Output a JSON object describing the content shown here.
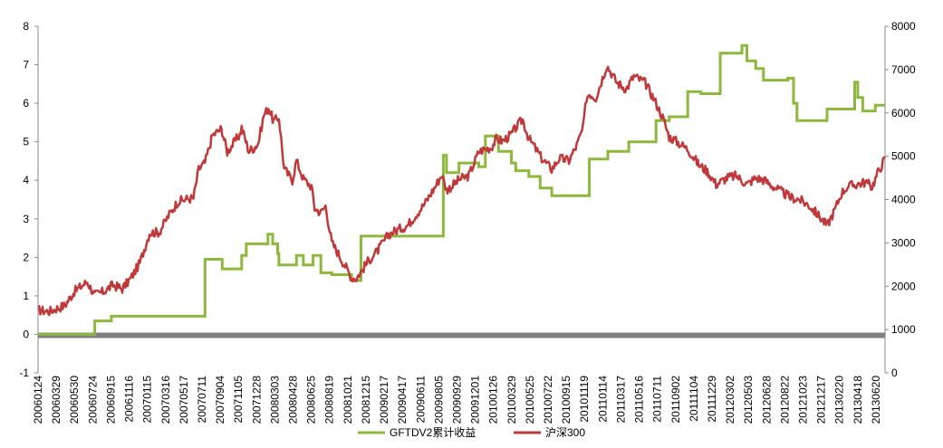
{
  "colors": {
    "green_series": "#8DB83E",
    "red_series": "#C0393A",
    "zero_band": "#7F7F7F",
    "axis": "#888888"
  },
  "chart_data": {
    "type": "line",
    "grid": false,
    "legend_position": "bottom",
    "left_axis": {
      "ylim": [
        -1,
        8
      ],
      "ticks": [
        "-1",
        "0",
        "1",
        "2",
        "3",
        "4",
        "5",
        "6",
        "7",
        "8"
      ]
    },
    "right_axis": {
      "ylim": [
        0,
        8000
      ],
      "ticks": [
        "0",
        "1000",
        "2000",
        "3000",
        "4000",
        "5000",
        "6000",
        "7000",
        "8000"
      ]
    },
    "x_start": "20060124",
    "x_end": "20130620",
    "x_tick_labels": [
      "20060124",
      "20060329",
      "20060530",
      "20060724",
      "20060915",
      "20061116",
      "20070115",
      "20070316",
      "20070517",
      "20070711",
      "20070904",
      "20071105",
      "20071228",
      "20080303",
      "20080428",
      "20080625",
      "20080819",
      "20081021",
      "20081215",
      "20090217",
      "20090417",
      "20090611",
      "20090805",
      "20090929",
      "20091201",
      "20100126",
      "20100329",
      "20100525",
      "20100722",
      "20100915",
      "20101119",
      "20110114",
      "20110317",
      "20110516",
      "20110711",
      "20110902",
      "20111104",
      "20111229",
      "20120302",
      "20120503",
      "20120628",
      "20120822",
      "20121023",
      "20121217",
      "20130220",
      "20130418",
      "20130620"
    ],
    "series": [
      {
        "name": "GFTDV2累计收益",
        "axis": "left",
        "step": true,
        "points": [
          [
            "20060124",
            0.0
          ],
          [
            "20060724",
            0.0
          ],
          [
            "20060724",
            0.35
          ],
          [
            "20060915",
            0.35
          ],
          [
            "20060915",
            0.47
          ],
          [
            "20070711",
            0.47
          ],
          [
            "20070711",
            1.95
          ],
          [
            "20070904",
            1.95
          ],
          [
            "20070904",
            1.7
          ],
          [
            "20071105",
            1.7
          ],
          [
            "20071105",
            2.05
          ],
          [
            "20071120",
            2.05
          ],
          [
            "20071120",
            2.35
          ],
          [
            "20080128",
            2.35
          ],
          [
            "20080128",
            2.6
          ],
          [
            "20080212",
            2.6
          ],
          [
            "20080212",
            2.35
          ],
          [
            "20080228",
            2.35
          ],
          [
            "20080228",
            2.1
          ],
          [
            "20080303",
            2.1
          ],
          [
            "20080303",
            1.8
          ],
          [
            "20080428",
            1.8
          ],
          [
            "20080428",
            2.05
          ],
          [
            "20080520",
            2.05
          ],
          [
            "20080520",
            1.8
          ],
          [
            "20080620",
            1.8
          ],
          [
            "20080620",
            2.05
          ],
          [
            "20080715",
            2.05
          ],
          [
            "20080715",
            1.6
          ],
          [
            "20080819",
            1.6
          ],
          [
            "20080819",
            1.55
          ],
          [
            "20081021",
            1.55
          ],
          [
            "20081021",
            1.4
          ],
          [
            "20081120",
            1.4
          ],
          [
            "20081120",
            2.55
          ],
          [
            "20090810",
            2.55
          ],
          [
            "20090810",
            4.65
          ],
          [
            "20090820",
            4.65
          ],
          [
            "20090820",
            4.2
          ],
          [
            "20090929",
            4.2
          ],
          [
            "20090929",
            4.45
          ],
          [
            "20091201",
            4.45
          ],
          [
            "20091201",
            4.35
          ],
          [
            "20091222",
            4.35
          ],
          [
            "20091222",
            5.15
          ],
          [
            "20100202",
            5.15
          ],
          [
            "20100202",
            4.75
          ],
          [
            "20100315",
            4.75
          ],
          [
            "20100315",
            4.45
          ],
          [
            "20100329",
            4.45
          ],
          [
            "20100329",
            4.25
          ],
          [
            "20100510",
            4.25
          ],
          [
            "20100510",
            4.1
          ],
          [
            "20100615",
            4.1
          ],
          [
            "20100615",
            3.8
          ],
          [
            "20100722",
            3.8
          ],
          [
            "20100722",
            3.6
          ],
          [
            "20101119",
            3.6
          ],
          [
            "20101119",
            4.55
          ],
          [
            "20110117",
            4.55
          ],
          [
            "20110117",
            4.75
          ],
          [
            "20110325",
            4.75
          ],
          [
            "20110325",
            5.0
          ],
          [
            "20110620",
            5.0
          ],
          [
            "20110620",
            5.55
          ],
          [
            "20110801",
            5.55
          ],
          [
            "20110801",
            5.65
          ],
          [
            "20110929",
            5.65
          ],
          [
            "20110929",
            6.3
          ],
          [
            "20111110",
            6.3
          ],
          [
            "20111110",
            6.25
          ],
          [
            "20120111",
            6.25
          ],
          [
            "20120111",
            7.3
          ],
          [
            "20120320",
            7.3
          ],
          [
            "20120320",
            7.5
          ],
          [
            "20120405",
            7.5
          ],
          [
            "20120405",
            7.1
          ],
          [
            "20120503",
            7.1
          ],
          [
            "20120503",
            6.9
          ],
          [
            "20120528",
            6.9
          ],
          [
            "20120528",
            6.6
          ],
          [
            "20120813",
            6.6
          ],
          [
            "20120813",
            6.65
          ],
          [
            "20120901",
            6.65
          ],
          [
            "20120901",
            6.0
          ],
          [
            "20120912",
            6.0
          ],
          [
            "20120912",
            5.55
          ],
          [
            "20121217",
            5.55
          ],
          [
            "20121217",
            5.85
          ],
          [
            "20130315",
            5.85
          ],
          [
            "20130315",
            6.55
          ],
          [
            "20130325",
            6.55
          ],
          [
            "20130325",
            6.15
          ],
          [
            "20130410",
            6.15
          ],
          [
            "20130410",
            5.8
          ],
          [
            "20130520",
            5.8
          ],
          [
            "20130520",
            5.95
          ],
          [
            "20130620",
            5.95
          ]
        ]
      },
      {
        "name": "沪深300",
        "axis": "right",
        "step": false,
        "points": [
          [
            "20060124",
            1450
          ],
          [
            "20060301",
            1420
          ],
          [
            "20060420",
            1560
          ],
          [
            "20060520",
            1880
          ],
          [
            "20060630",
            2100
          ],
          [
            "20060724",
            1800
          ],
          [
            "20060820",
            1870
          ],
          [
            "20060920",
            2030
          ],
          [
            "20061020",
            1940
          ],
          [
            "20061116",
            2180
          ],
          [
            "20061215",
            2540
          ],
          [
            "20070115",
            3230
          ],
          [
            "20070215",
            3250
          ],
          [
            "20070316",
            3620
          ],
          [
            "20070415",
            3950
          ],
          [
            "20070517",
            4020
          ],
          [
            "20070604",
            4030
          ],
          [
            "20070621",
            4700
          ],
          [
            "20070711",
            4850
          ],
          [
            "20070804",
            5480
          ],
          [
            "20070830",
            5620
          ],
          [
            "20070904",
            5580
          ],
          [
            "20070920",
            5100
          ],
          [
            "20071010",
            5300
          ],
          [
            "20071030",
            5500
          ],
          [
            "20071105",
            5660
          ],
          [
            "20071128",
            5120
          ],
          [
            "20071215",
            5200
          ],
          [
            "20071228",
            5300
          ],
          [
            "20080115",
            5950
          ],
          [
            "20080130",
            6120
          ],
          [
            "20080215",
            5800
          ],
          [
            "20080303",
            5900
          ],
          [
            "20080320",
            4700
          ],
          [
            "20080415",
            4450
          ],
          [
            "20080428",
            4900
          ],
          [
            "20080520",
            4480
          ],
          [
            "20080615",
            4300
          ],
          [
            "20080625",
            3800
          ],
          [
            "20080715",
            3700
          ],
          [
            "20080730",
            3850
          ],
          [
            "20080819",
            3000
          ],
          [
            "20080905",
            2800
          ],
          [
            "20081021",
            2200
          ],
          [
            "20081105",
            2180
          ],
          [
            "20081215",
            2600
          ],
          [
            "20090110",
            2800
          ],
          [
            "20090217",
            3200
          ],
          [
            "20090310",
            3280
          ],
          [
            "20090417",
            3400
          ],
          [
            "20090520",
            3700
          ],
          [
            "20090611",
            3900
          ],
          [
            "20090715",
            4300
          ],
          [
            "20090805",
            4580
          ],
          [
            "20090820",
            4220
          ],
          [
            "20090905",
            4300
          ],
          [
            "20090929",
            4460
          ],
          [
            "20091030",
            4550
          ],
          [
            "20091201",
            5100
          ],
          [
            "20091215",
            5150
          ],
          [
            "20100110",
            5200
          ],
          [
            "20100126",
            5400
          ],
          [
            "20100215",
            5350
          ],
          [
            "20100315",
            5500
          ],
          [
            "20100329",
            5650
          ],
          [
            "20100420",
            5850
          ],
          [
            "20100510",
            5400
          ],
          [
            "20100525",
            5250
          ],
          [
            "20100620",
            4950
          ],
          [
            "20100722",
            4700
          ],
          [
            "20100815",
            4950
          ],
          [
            "20100915",
            4900
          ],
          [
            "20101010",
            5250
          ],
          [
            "20101030",
            5650
          ],
          [
            "20101110",
            6350
          ],
          [
            "20101119",
            6450
          ],
          [
            "20101210",
            6350
          ],
          [
            "20110114",
            7100
          ],
          [
            "20110215",
            6700
          ],
          [
            "20110317",
            6550
          ],
          [
            "20110410",
            6850
          ],
          [
            "20110516",
            6700
          ],
          [
            "20110615",
            6300
          ],
          [
            "20110711",
            5900
          ],
          [
            "20110801",
            5450
          ],
          [
            "20110902",
            5300
          ],
          [
            "20111001",
            5150
          ],
          [
            "20111104",
            4800
          ],
          [
            "20111201",
            4650
          ],
          [
            "20111229",
            4350
          ],
          [
            "20120201",
            4500
          ],
          [
            "20120302",
            4550
          ],
          [
            "20120405",
            4350
          ],
          [
            "20120503",
            4500
          ],
          [
            "20120530",
            4450
          ],
          [
            "20120628",
            4300
          ],
          [
            "20120720",
            4200
          ],
          [
            "20120822",
            4050
          ],
          [
            "20120920",
            4000
          ],
          [
            "20121023",
            3850
          ],
          [
            "20121130",
            3550
          ],
          [
            "20121217",
            3400
          ],
          [
            "20130110",
            3750
          ],
          [
            "20130201",
            4150
          ],
          [
            "20130220",
            4300
          ],
          [
            "20130320",
            4350
          ],
          [
            "20130418",
            4400
          ],
          [
            "20130510",
            4300
          ],
          [
            "20130530",
            4650
          ],
          [
            "20130620",
            4950
          ]
        ]
      }
    ]
  },
  "legend": [
    {
      "label": "GFTDV2累计收益",
      "color_key": "green_series"
    },
    {
      "label": "沪深300",
      "color_key": "red_series"
    }
  ]
}
